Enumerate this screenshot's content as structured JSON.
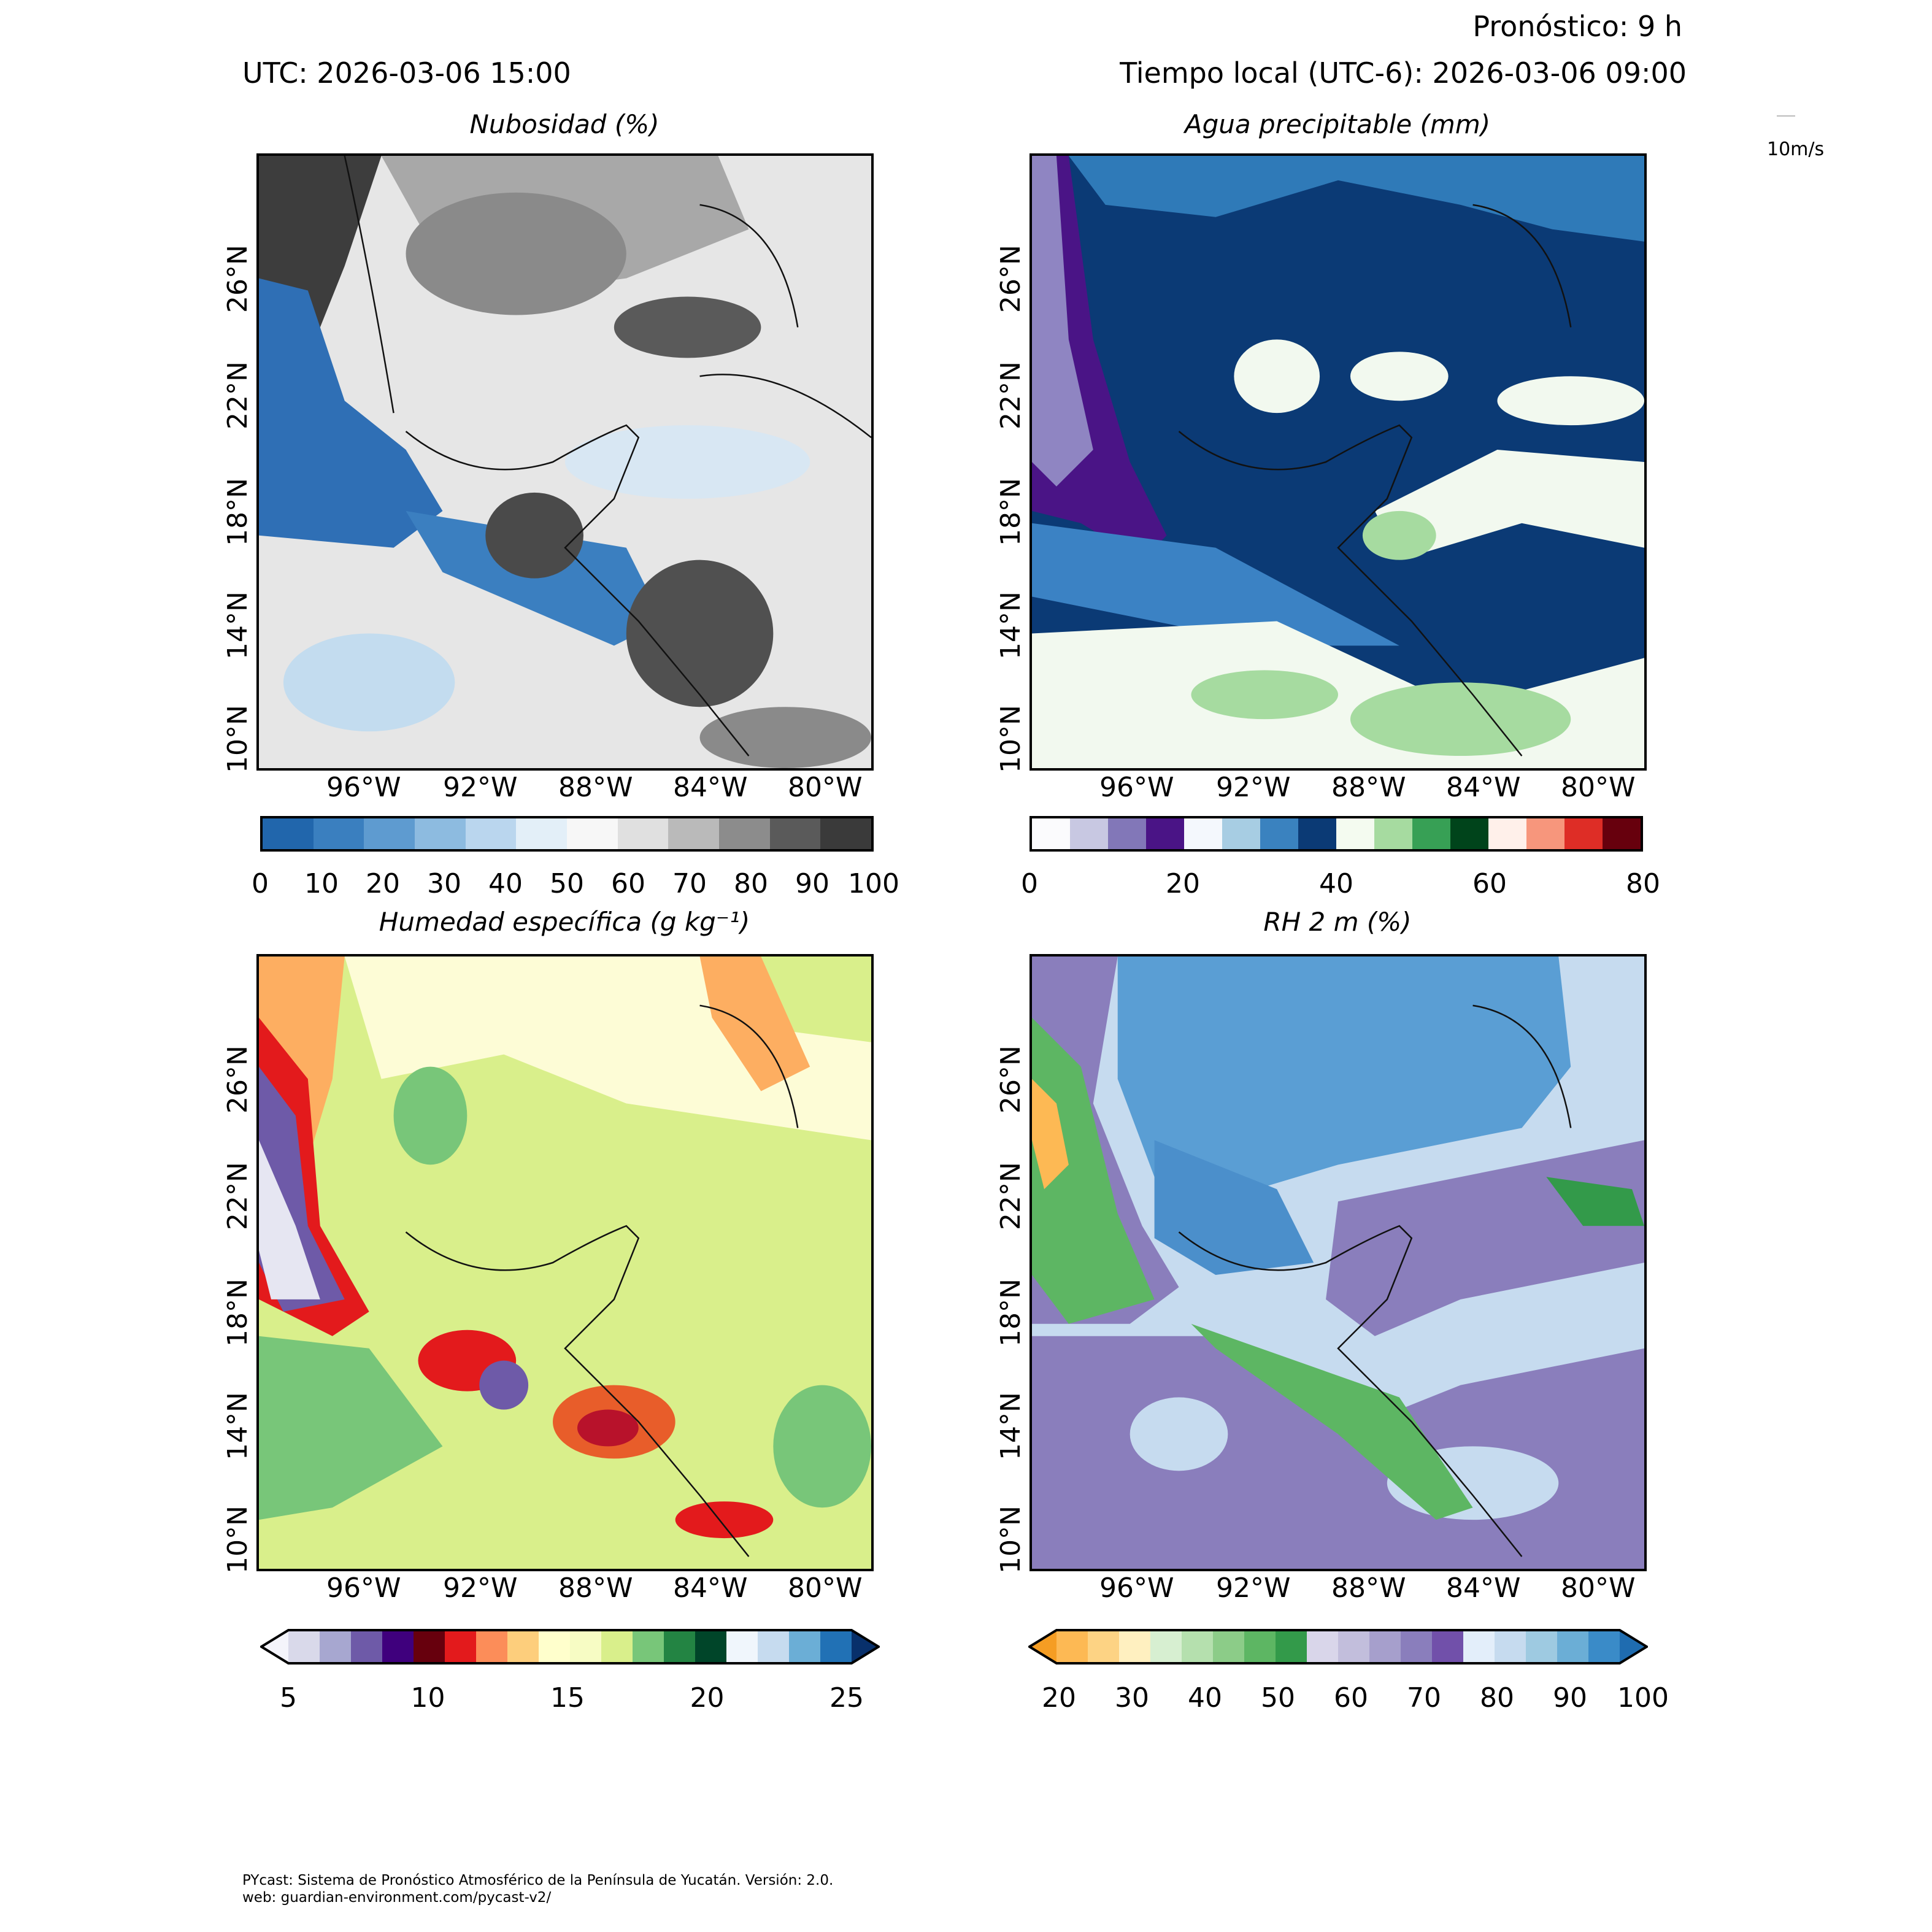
{
  "header": {
    "forecast": "Pronóstico: 9 h",
    "utc": "UTC:  2026-03-06 15:00",
    "local": "Tiempo local (UTC-6): 2026-03-06 09:00",
    "wind_key_label": "10m/s"
  },
  "axes": {
    "lat_ticks": [
      "26°N",
      "22°N",
      "18°N",
      "14°N",
      "10°N"
    ],
    "lon_ticks": [
      "96°W",
      "92°W",
      "88°W",
      "84°W",
      "80°W"
    ]
  },
  "panels": [
    {
      "title": "Nubosidad (%)",
      "colorbar_ticks": [
        "0",
        "10",
        "20",
        "30",
        "40",
        "50",
        "60",
        "70",
        "80",
        "90",
        "100"
      ],
      "colorbar_colors": [
        "#2166ac",
        "#3a7fbf",
        "#5e9bd0",
        "#8dbbe0",
        "#bad6ee",
        "#e3eff8",
        "#f7f7f7",
        "#e0e0e0",
        "#bababa",
        "#8c8c8c",
        "#5a5a5a",
        "#3a3a3a"
      ]
    },
    {
      "title": "Agua precipitable (mm)",
      "colorbar_ticks": [
        "0",
        "20",
        "40",
        "60",
        "80"
      ],
      "colorbar_colors": [
        "#fbfbfd",
        "#c8c8e2",
        "#8277b8",
        "#4a1486",
        "#f4f8fd",
        "#a7cde3",
        "#3a82bf",
        "#0b3a75",
        "#f4fbf0",
        "#a6dba0",
        "#37a055",
        "#00441b",
        "#fff0ea",
        "#f7967c",
        "#de2d26",
        "#67000d"
      ]
    },
    {
      "title": "Humedad específica (g kg⁻¹)",
      "colorbar_ticks": [
        "5",
        "10",
        "15",
        "20",
        "25"
      ],
      "colorbar_colors": [
        "#f4f4fb",
        "#d9d9ea",
        "#a7a7d0",
        "#6e5aa8",
        "#3f007d",
        "#67000d",
        "#e31a1c",
        "#fc8d59",
        "#fdce7c",
        "#ffffcc",
        "#f7fcc4",
        "#d9ef8b",
        "#78c679",
        "#238443",
        "#004529",
        "#f0f6fc",
        "#c6dbef",
        "#6baed6",
        "#2171b5",
        "#08306b"
      ]
    },
    {
      "title": "RH 2 m (%)",
      "colorbar_ticks": [
        "20",
        "30",
        "40",
        "50",
        "60",
        "70",
        "80",
        "90",
        "100"
      ],
      "colorbar_colors": [
        "#f59d23",
        "#fdb954",
        "#fdd384",
        "#fff0c0",
        "#d7efd1",
        "#b5e0ae",
        "#8ccc88",
        "#5db663",
        "#339a4a",
        "#d9d6ea",
        "#c2bedc",
        "#a69fcc",
        "#8a7ebc",
        "#7150aa",
        "#e3eefa",
        "#c6dbef",
        "#9ecae1",
        "#6baed6",
        "#3a8bc8",
        "#1f6cb0"
      ]
    }
  ],
  "footer": {
    "line1": "PYcast: Sistema de Pronóstico Atmosférico de la Península de Yucatán. Versión: 2.0.",
    "line2": "web: guardian-environment.com/pycast-v2/"
  }
}
